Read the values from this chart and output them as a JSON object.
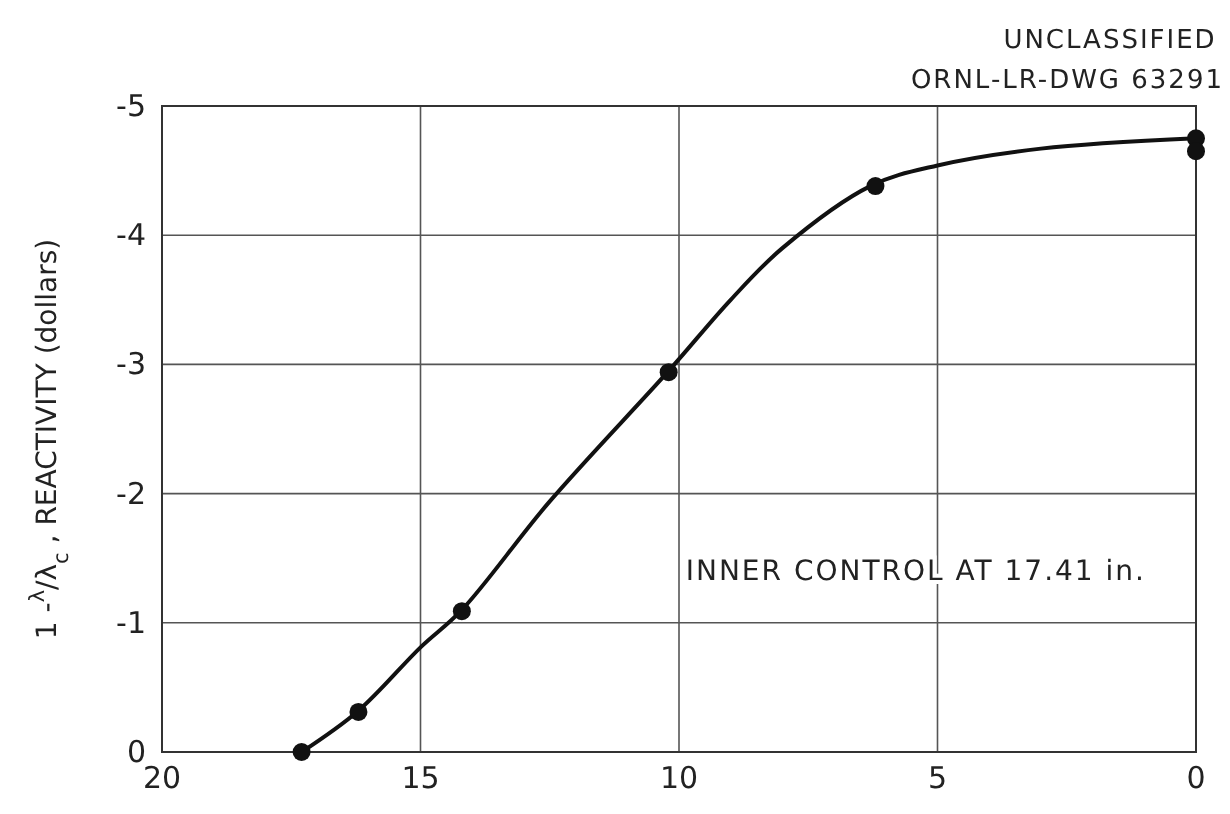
{
  "chart_data": {
    "type": "line",
    "ylabel": "1 -$^{λ}$/λ$_{c}$ ,  REACTIVITY (dollars)",
    "annotations": [
      "UNCLASSIFIED",
      "ORNL-LR-DWG 63291",
      "INNER CONTROL AT 17.41 in."
    ],
    "series": [
      {
        "color": "#111111",
        "marker": "none",
        "x": [
          17.3,
          16.2,
          15,
          14.2,
          12.5,
          10.2,
          9,
          8,
          6.3,
          5,
          3,
          0
        ],
        "values": [
          0,
          -0.32,
          -0.81,
          -1.1,
          -1.94,
          -2.95,
          -3.5,
          -3.9,
          -4.38,
          -4.54,
          -4.67,
          -4.75
        ]
      },
      {
        "type": "scatter",
        "color": "#111111",
        "marker": "circle",
        "x": [
          17.3,
          16.2,
          14.2,
          10.2,
          6.2,
          0,
          0
        ],
        "values": [
          0,
          -0.31,
          -1.09,
          -2.94,
          -4.38,
          -4.75,
          -4.65
        ]
      }
    ],
    "xlim": [
      20,
      0
    ],
    "xticks": [
      20,
      15,
      10,
      5,
      0
    ],
    "ylim": [
      0,
      -5
    ],
    "yticks": [
      0,
      -1,
      -2,
      -3,
      -4,
      -5
    ],
    "grid": true
  }
}
